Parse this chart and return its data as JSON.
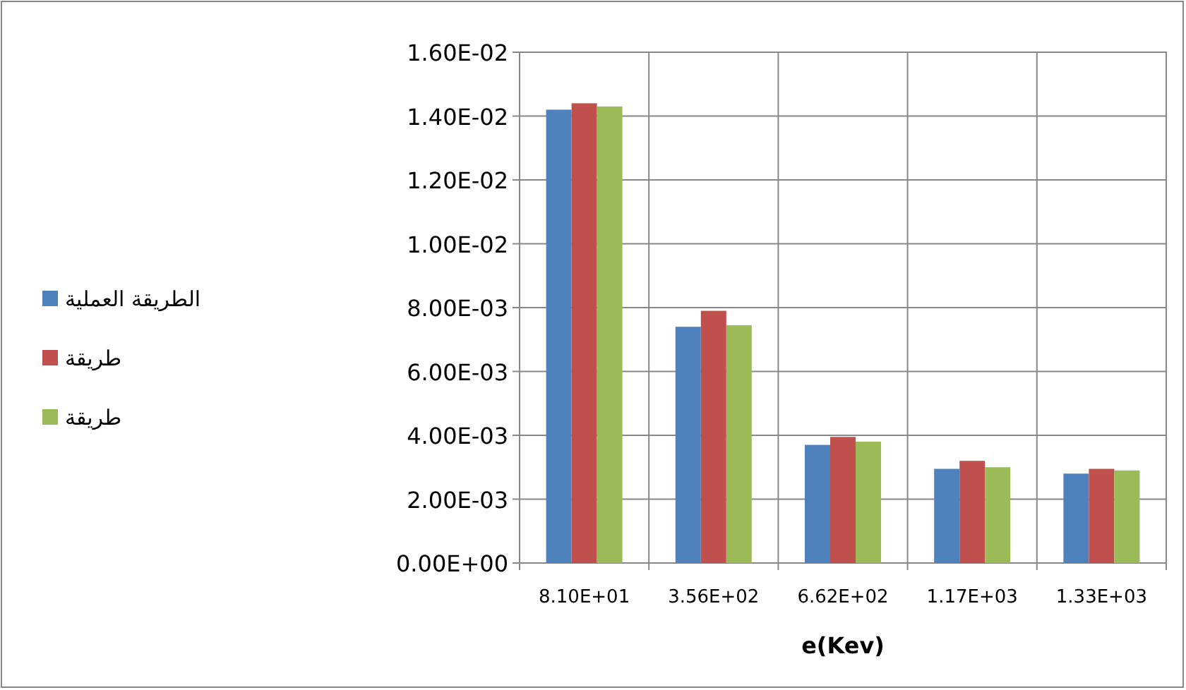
{
  "chart_data": {
    "type": "bar",
    "categories": [
      "8.10E+01",
      "3.56E+02",
      "6.62E+02",
      "1.17E+03",
      "1.33E+03"
    ],
    "xlabel": "e(Kev)",
    "series": [
      {
        "name": "الطريقة العملية",
        "color": "#4f81bd",
        "values": [
          0.0142,
          0.0074,
          0.0037,
          0.00295,
          0.0028
        ]
      },
      {
        "name": "طريقة",
        "color": "#c0504d",
        "values": [
          0.0144,
          0.0079,
          0.00395,
          0.0032,
          0.00295
        ]
      },
      {
        "name": "طريقة",
        "color": "#9bbb59",
        "values": [
          0.0143,
          0.00745,
          0.0038,
          0.003,
          0.0029
        ]
      }
    ],
    "ylim": [
      0,
      0.016
    ],
    "yticks": [
      {
        "value": 0,
        "label": "0.00E+00"
      },
      {
        "value": 0.002,
        "label": "2.00E-03"
      },
      {
        "value": 0.004,
        "label": "4.00E-03"
      },
      {
        "value": 0.006,
        "label": "6.00E-03"
      },
      {
        "value": 0.008,
        "label": "8.00E-03"
      },
      {
        "value": 0.01,
        "label": "1.00E-02"
      },
      {
        "value": 0.012,
        "label": "1.20E-02"
      },
      {
        "value": 0.014,
        "label": "1.40E-02"
      },
      {
        "value": 0.016,
        "label": "1.60E-02"
      }
    ],
    "grid": true,
    "legend": "left"
  }
}
